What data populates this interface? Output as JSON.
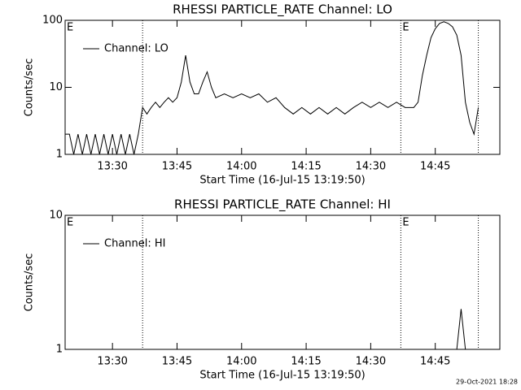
{
  "chart_data": [
    {
      "type": "line",
      "title": "RHESSI PARTICLE_RATE Channel: LO",
      "xlabel": "Start Time (16-Jul-15 13:19:50)",
      "ylabel": "Counts/sec",
      "x": [
        "13:19",
        "13:20",
        "13:21",
        "13:22",
        "13:23",
        "13:24",
        "13:25",
        "13:26",
        "13:27",
        "13:28",
        "13:29",
        "13:30",
        "13:31",
        "13:32",
        "13:33",
        "13:34",
        "13:35",
        "13:36",
        "13:37",
        "13:38",
        "13:39",
        "13:40",
        "13:41",
        "13:42",
        "13:43",
        "13:44",
        "13:45",
        "13:46",
        "13:47",
        "13:48",
        "13:49",
        "13:50",
        "13:51",
        "13:52",
        "13:53",
        "13:54",
        "13:56",
        "13:58",
        "14:00",
        "14:02",
        "14:04",
        "14:06",
        "14:08",
        "14:10",
        "14:12",
        "14:14",
        "14:16",
        "14:18",
        "14:20",
        "14:22",
        "14:24",
        "14:26",
        "14:28",
        "14:30",
        "14:32",
        "14:34",
        "14:36",
        "14:38",
        "14:40",
        "14:41",
        "14:42",
        "14:43",
        "14:44",
        "14:45",
        "14:46",
        "14:47",
        "14:48",
        "14:49",
        "14:50",
        "14:51",
        "14:52",
        "14:53",
        "14:54",
        "14:55"
      ],
      "series": [
        {
          "name": "Channel: LO",
          "color": "#000000",
          "values": [
            2,
            2,
            1,
            2,
            1,
            2,
            1,
            2,
            1,
            2,
            1,
            2,
            1,
            2,
            1,
            2,
            1,
            2,
            5,
            4,
            5,
            6,
            5,
            6,
            7,
            6,
            7,
            12,
            30,
            12,
            8,
            8,
            12,
            17,
            10,
            7,
            8,
            7,
            8,
            7,
            8,
            6,
            7,
            5,
            4,
            5,
            4,
            5,
            4,
            5,
            4,
            5,
            6,
            5,
            6,
            5,
            6,
            5,
            5,
            6,
            15,
            30,
            55,
            75,
            90,
            95,
            90,
            80,
            60,
            30,
            6,
            3,
            2,
            5
          ]
        }
      ],
      "xlim": [
        "13:19",
        "15:00"
      ],
      "xticks": [
        "13:30",
        "13:45",
        "14:00",
        "14:15",
        "14:30",
        "14:45"
      ],
      "ylim": [
        1,
        100
      ],
      "yticks": [
        1,
        10,
        100
      ],
      "log_y": true,
      "event_lines": [
        "13:37",
        "14:37",
        "14:55"
      ],
      "annotations": [
        {
          "text": "E",
          "x": "13:19"
        },
        {
          "text": "E",
          "x": "14:37"
        }
      ]
    },
    {
      "type": "line",
      "title": "RHESSI PARTICLE_RATE Channel: HI",
      "xlabel": "Start Time (16-Jul-15 13:19:50)",
      "ylabel": "Counts/sec",
      "x": [
        "13:19",
        "14:50",
        "14:51",
        "14:52",
        "14:55"
      ],
      "series": [
        {
          "name": "Channel: HI",
          "color": "#000000",
          "values": [
            1,
            1,
            2,
            1,
            1
          ]
        }
      ],
      "xlim": [
        "13:19",
        "15:00"
      ],
      "xticks": [
        "13:30",
        "13:45",
        "14:00",
        "14:15",
        "14:30",
        "14:45"
      ],
      "ylim": [
        1,
        10
      ],
      "yticks": [
        1,
        10
      ],
      "log_y": true,
      "event_lines": [
        "13:37",
        "14:37",
        "14:55"
      ],
      "annotations": [
        {
          "text": "E",
          "x": "13:19"
        },
        {
          "text": "E",
          "x": "14:37"
        }
      ]
    }
  ],
  "footer": "29-Oct-2021 18:28"
}
